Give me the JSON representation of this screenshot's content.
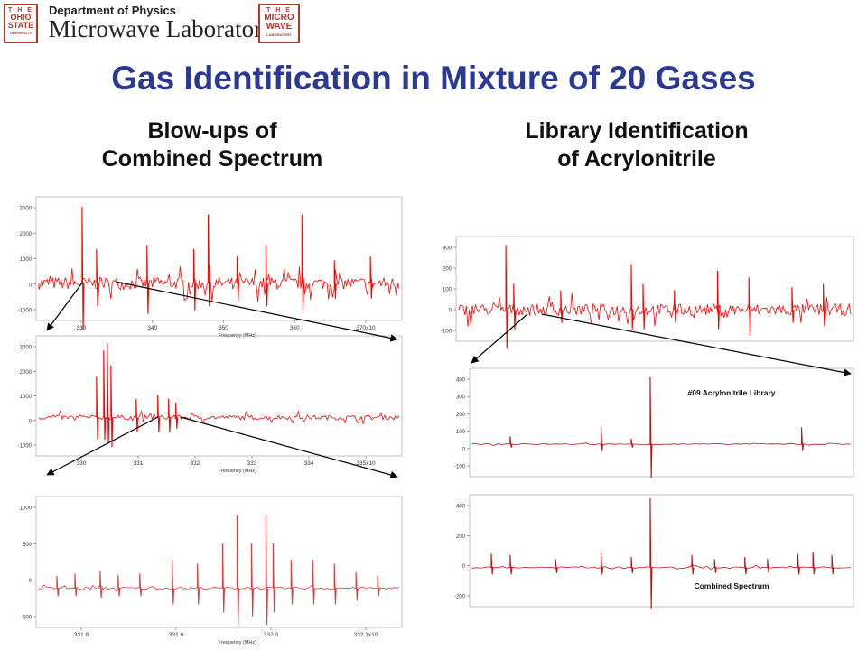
{
  "header": {
    "osu_logo_lines": [
      "T H E",
      "OHIO",
      "STATE",
      "UNIVERSITY"
    ],
    "department": "Department of Physics",
    "lab_name": "Microwave Laboratory",
    "mw_logo_lines": [
      "T H E",
      "MICRO",
      "WAVE",
      "LABORATORY"
    ]
  },
  "title": "Gas Identification in Mixture of 20 Gases",
  "left_heading": [
    "Blow-ups of",
    "Combined Spectrum"
  ],
  "right_heading": [
    "Library Identification",
    "of Acrylonitrile"
  ],
  "colors": {
    "title": "#2b3990",
    "trace_bright": "#ff0000",
    "trace_dark": "#b81414",
    "logo": "#b0392b"
  },
  "chart_data": [
    {
      "type": "line",
      "xlabel": "Frequency (MHz)",
      "x_ticks": [
        "330",
        "340",
        "350",
        "360",
        "370x10"
      ],
      "y_ticks": [
        "3000",
        "2000",
        "1000",
        "0",
        "-1000"
      ]
    },
    {
      "type": "line",
      "xlabel": "Frequency (MHz)",
      "x_ticks": [
        "330",
        "331",
        "332",
        "333",
        "334",
        "335x10"
      ],
      "y_ticks": [
        "3000",
        "2000",
        "1000",
        "0",
        "-1000"
      ]
    },
    {
      "type": "line",
      "xlabel": "Frequency (MHz)",
      "x_ticks": [
        "331.8",
        "331.9",
        "332.0",
        "332.1x10"
      ],
      "y_ticks": [
        "1000",
        "500",
        "0",
        "-500"
      ]
    },
    {
      "type": "line",
      "y_ticks": [
        "300",
        "200",
        "100",
        "0",
        "-100"
      ]
    },
    {
      "type": "line",
      "annotation": "#09 Acrylonitrile Library",
      "y_ticks": [
        "400",
        "300",
        "200",
        "100",
        "0",
        "-100"
      ]
    },
    {
      "type": "line",
      "annotation": "Combined Spectrum",
      "y_ticks": [
        "400",
        "200",
        "0",
        "-200"
      ]
    }
  ]
}
